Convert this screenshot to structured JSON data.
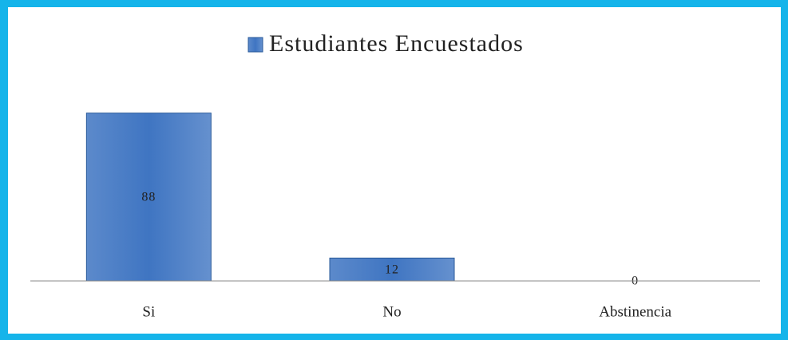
{
  "chart_data": {
    "type": "bar",
    "categories": [
      "Si",
      "No",
      "Abstinencia"
    ],
    "series": [
      {
        "name": "Estudiantes Encuestados",
        "color": "#3f75c2",
        "values": [
          88,
          12,
          0
        ]
      }
    ],
    "ylim": [
      0,
      100
    ],
    "legend": "top",
    "data_labels": true
  }
}
